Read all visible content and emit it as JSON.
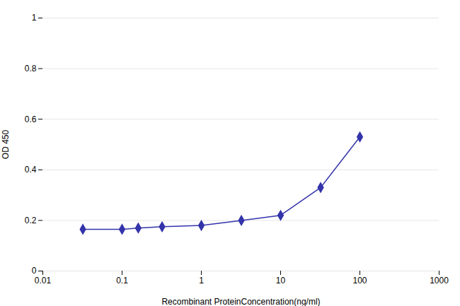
{
  "chart_data": {
    "type": "line",
    "x": [
      0.032,
      0.1,
      0.16,
      0.32,
      1.0,
      3.2,
      10.0,
      32.0,
      100.0
    ],
    "values": [
      0.165,
      0.165,
      0.17,
      0.175,
      0.18,
      0.2,
      0.22,
      0.33,
      0.53
    ],
    "color": "#3333aa",
    "marker": "diamond",
    "xlabel": "Recombinant ProteinConcentration(ng/ml)",
    "ylabel": "OD 450",
    "log": "x",
    "xlim": [
      0.01,
      1000
    ],
    "ylim": [
      0,
      1
    ],
    "xticks": [
      0.01,
      0.1,
      1,
      10,
      100,
      1000
    ],
    "yticks": [
      0,
      0.2,
      0.4,
      0.6,
      0.8,
      1
    ],
    "grid": true
  }
}
